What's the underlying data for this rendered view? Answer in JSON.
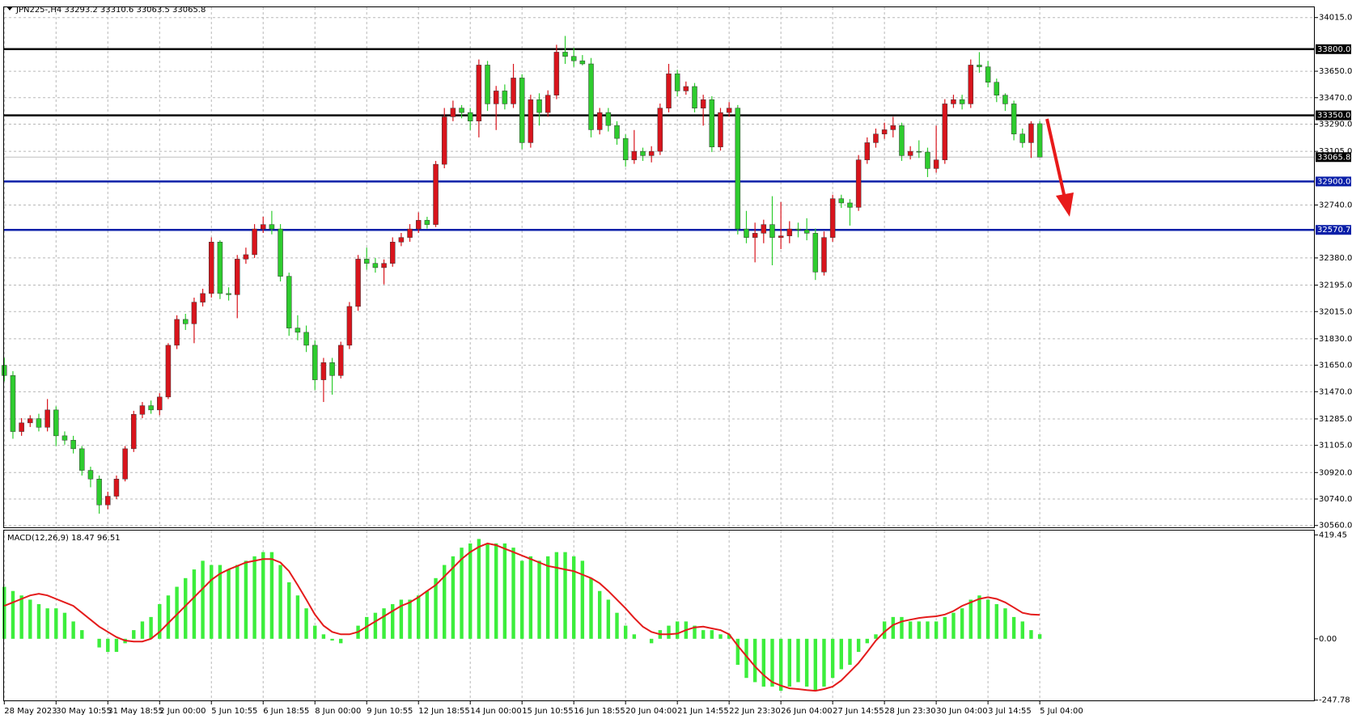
{
  "chart_data": [
    {
      "type": "candlestick",
      "title": "JPN225-,H4  33293.2 33310.6 33063.5 33065.8",
      "up_color": "#d8141c",
      "down_color": "#2ecc2e",
      "grid": true,
      "ylim": [
        30542,
        34085
      ],
      "yticks": [
        {
          "value": 34015,
          "label": "34015.0"
        },
        {
          "value": 33650,
          "label": "33650.0"
        },
        {
          "value": 33470,
          "label": "33470.0"
        },
        {
          "value": 33290,
          "label": "33290.0"
        },
        {
          "value": 33105,
          "label": "33105.0"
        },
        {
          "value": 32740,
          "label": "32740.0"
        },
        {
          "value": 32380,
          "label": "32380.0"
        },
        {
          "value": 32195,
          "label": "32195.0"
        },
        {
          "value": 32015,
          "label": "32015.0"
        },
        {
          "value": 31830,
          "label": "31830.0"
        },
        {
          "value": 31650,
          "label": "31650.0"
        },
        {
          "value": 31470,
          "label": "31470.0"
        },
        {
          "value": 31285,
          "label": "31285.0"
        },
        {
          "value": 31105,
          "label": "31105.0"
        },
        {
          "value": 30920,
          "label": "30920.0"
        },
        {
          "value": 30740,
          "label": "30740.0"
        },
        {
          "value": 30560,
          "label": "30560.0"
        }
      ],
      "xticks": [
        {
          "value": 0,
          "label": "28 May 2023"
        },
        {
          "value": 6,
          "label": "30 May 10:55"
        },
        {
          "value": 12,
          "label": "31 May 18:55"
        },
        {
          "value": 18,
          "label": "2 Jun 00:00"
        },
        {
          "value": 24,
          "label": "5 Jun 10:55"
        },
        {
          "value": 30,
          "label": "6 Jun 18:55"
        },
        {
          "value": 36,
          "label": "8 Jun 00:00"
        },
        {
          "value": 42,
          "label": "9 Jun 10:55"
        },
        {
          "value": 48,
          "label": "12 Jun 18:55"
        },
        {
          "value": 54,
          "label": "14 Jun 00:00"
        },
        {
          "value": 60,
          "label": "15 Jun 10:55"
        },
        {
          "value": 66,
          "label": "16 Jun 18:55"
        },
        {
          "value": 72,
          "label": "20 Jun 04:00"
        },
        {
          "value": 78,
          "label": "21 Jun 14:55"
        },
        {
          "value": 84,
          "label": "22 Jun 23:30"
        },
        {
          "value": 90,
          "label": "26 Jun 04:00"
        },
        {
          "value": 96,
          "label": "27 Jun 14:55"
        },
        {
          "value": 102,
          "label": "28 Jun 23:30"
        },
        {
          "value": 108,
          "label": "30 Jun 04:00"
        },
        {
          "value": 114,
          "label": "3 Jul 14:55"
        },
        {
          "value": 120,
          "label": "5 Jul 04:00"
        }
      ],
      "levels": [
        {
          "value": 33800,
          "label": "33800.0",
          "color": "#000000"
        },
        {
          "value": 33350,
          "label": "33350.0",
          "color": "#000000"
        },
        {
          "value": 32900,
          "label": "32900.0",
          "color": "#0a1fa8"
        },
        {
          "value": 32570.7,
          "label": "32570.7",
          "color": "#0a1fa8"
        }
      ],
      "current_price": {
        "value": 33065.8,
        "label": "33065.8",
        "color": "#000000"
      },
      "open": [
        31650,
        31580,
        31199,
        31258,
        31287,
        31228,
        31346,
        31170,
        31140,
        31082,
        30935,
        30876,
        30700,
        30759,
        30876,
        31082,
        31316,
        31375,
        31346,
        31434,
        31786,
        31962,
        31932,
        32079,
        32138,
        32488,
        32138,
        32130,
        32372,
        32402,
        32577,
        32607,
        32577,
        32255,
        31903,
        31874,
        31786,
        31551,
        31668,
        31580,
        31786,
        32050,
        32372,
        32343,
        32314,
        32343,
        32488,
        32519,
        32577,
        32636,
        32607,
        33017,
        33340,
        33399,
        33369,
        33311,
        33692,
        33428,
        33516,
        33428,
        33604,
        33164,
        33457,
        33369,
        33487,
        33780,
        33751,
        33721,
        33700,
        33252,
        33369,
        33281,
        33193,
        33047,
        33105,
        33076,
        33105,
        33399,
        33633,
        33516,
        33546,
        33399,
        33457,
        33135,
        33369,
        33399,
        32577,
        32519,
        32548,
        32607,
        32519,
        32530,
        32577,
        32570,
        32548,
        32284,
        32519,
        32783,
        32754,
        32724,
        33047,
        33164,
        33223,
        33252,
        33281,
        33076,
        33105,
        33100,
        32988,
        33047,
        33428,
        33457,
        33428,
        33692,
        33680,
        33575,
        33487,
        33428,
        33223,
        33164,
        33293.2
      ],
      "high": [
        31700,
        31610,
        31290,
        31310,
        31320,
        31420,
        31370,
        31200,
        31170,
        31100,
        30960,
        30900,
        30790,
        30900,
        31100,
        31340,
        31400,
        31410,
        31460,
        31800,
        31990,
        32000,
        32110,
        32170,
        32520,
        32500,
        32180,
        32400,
        32450,
        32610,
        32660,
        32700,
        32610,
        32280,
        31990,
        31920,
        31820,
        31700,
        31700,
        31810,
        32080,
        32400,
        32450,
        32380,
        32370,
        32520,
        32550,
        32610,
        32690,
        32660,
        33040,
        33400,
        33450,
        33420,
        33400,
        33730,
        33720,
        33550,
        33560,
        33700,
        33630,
        33490,
        33500,
        33520,
        33830,
        33890,
        33810,
        33760,
        33740,
        33400,
        33400,
        33310,
        33220,
        33250,
        33130,
        33140,
        33430,
        33700,
        33660,
        33580,
        33570,
        33490,
        33480,
        33400,
        33440,
        33420,
        32700,
        32620,
        32640,
        32800,
        32760,
        32630,
        32620,
        32650,
        32580,
        32560,
        32810,
        32810,
        32780,
        33080,
        33200,
        33260,
        33300,
        33340,
        33300,
        33140,
        33180,
        33130,
        33280,
        33460,
        33490,
        33490,
        33730,
        33780,
        33720,
        33600,
        33500,
        33450,
        33260,
        33310,
        33310.6
      ],
      "low": [
        31540,
        31150,
        31170,
        31230,
        31200,
        31200,
        31100,
        31110,
        31050,
        30900,
        30820,
        30640,
        30670,
        30740,
        30860,
        31060,
        31290,
        31320,
        31310,
        31420,
        31760,
        31890,
        31800,
        32050,
        32110,
        32100,
        32090,
        31970,
        32340,
        32380,
        32550,
        32540,
        32220,
        31850,
        31820,
        31740,
        31480,
        31400,
        31450,
        31560,
        31760,
        32020,
        32300,
        32280,
        32200,
        32320,
        32460,
        32490,
        32550,
        32580,
        32590,
        32990,
        33310,
        33330,
        33250,
        33200,
        33380,
        33250,
        33390,
        33400,
        33120,
        33130,
        33280,
        33340,
        33460,
        33700,
        33680,
        33690,
        33200,
        33220,
        33240,
        33150,
        33000,
        33020,
        33040,
        33030,
        33080,
        33370,
        33480,
        33490,
        33370,
        33280,
        33100,
        33110,
        33340,
        32540,
        32480,
        32350,
        32480,
        32330,
        32440,
        32480,
        32520,
        32500,
        32230,
        32260,
        32490,
        32720,
        32600,
        32700,
        33020,
        33130,
        33190,
        33200,
        33040,
        33050,
        33060,
        32930,
        32960,
        33020,
        33400,
        33390,
        33400,
        33640,
        33540,
        33440,
        33380,
        33180,
        33130,
        33060,
        33063.5
      ],
      "close": [
        31580,
        31199,
        31258,
        31287,
        31228,
        31346,
        31170,
        31140,
        31082,
        30935,
        30876,
        30700,
        30759,
        30876,
        31082,
        31316,
        31375,
        31346,
        31434,
        31786,
        31962,
        31932,
        32079,
        32138,
        32488,
        32138,
        32130,
        32372,
        32402,
        32577,
        32607,
        32577,
        32255,
        31903,
        31874,
        31786,
        31551,
        31668,
        31580,
        31786,
        32050,
        32372,
        32343,
        32314,
        32343,
        32488,
        32519,
        32577,
        32636,
        32607,
        33017,
        33340,
        33399,
        33369,
        33311,
        33692,
        33428,
        33516,
        33428,
        33604,
        33164,
        33457,
        33369,
        33487,
        33780,
        33751,
        33721,
        33700,
        33252,
        33369,
        33281,
        33193,
        33047,
        33105,
        33076,
        33105,
        33399,
        33633,
        33516,
        33546,
        33399,
        33457,
        33135,
        33369,
        33399,
        32577,
        32519,
        32548,
        32607,
        32519,
        32530,
        32577,
        32570,
        32548,
        32284,
        32519,
        32783,
        32754,
        32724,
        33047,
        33164,
        33223,
        33252,
        33281,
        33076,
        33105,
        33100,
        32988,
        33047,
        33428,
        33457,
        33428,
        33692,
        33680,
        33575,
        33487,
        33428,
        33223,
        33164,
        33293.2,
        33065.8
      ]
    },
    {
      "type": "macd",
      "title": "MACD(12,26,9) 18.47 96.51",
      "ylim": [
        -252,
        437
      ],
      "yticks": [
        419.45,
        {
          "value": 0,
          "label": "0.00"
        },
        -247.78
      ],
      "histogram": {
        "color": "#3cee3c",
        "values": [
          210,
          193,
          175,
          158,
          140,
          123,
          123,
          105,
          70,
          35,
          0,
          -35,
          -53,
          -53,
          -18,
          35,
          70,
          88,
          140,
          175,
          210,
          245,
          280,
          315,
          298,
          298,
          280,
          298,
          315,
          333,
          350,
          350,
          298,
          228,
          175,
          123,
          53,
          18,
          -7,
          -18,
          0,
          53,
          88,
          105,
          123,
          140,
          158,
          158,
          175,
          193,
          245,
          298,
          333,
          368,
          385,
          403,
          385,
          385,
          385,
          368,
          315,
          333,
          315,
          333,
          350,
          350,
          333,
          315,
          245,
          193,
          158,
          105,
          53,
          18,
          0,
          -18,
          35,
          53,
          70,
          70,
          53,
          35,
          35,
          18,
          18,
          -105,
          -158,
          -175,
          -193,
          -193,
          -210,
          -193,
          -175,
          -193,
          -210,
          -193,
          -158,
          -123,
          -105,
          -53,
          -18,
          18,
          70,
          88,
          88,
          70,
          70,
          70,
          70,
          88,
          105,
          123,
          158,
          175,
          158,
          140,
          123,
          88,
          70,
          35,
          18.47
        ]
      },
      "signal": {
        "color": "#e41b1b",
        "values": [
          133,
          147,
          161,
          175,
          182,
          175,
          161,
          147,
          133,
          105,
          77,
          49,
          28,
          7,
          -7,
          -11,
          -11,
          0,
          28,
          63,
          98,
          133,
          168,
          203,
          238,
          263,
          280,
          294,
          308,
          315,
          322,
          322,
          308,
          273,
          217,
          158,
          98,
          53,
          28,
          18,
          18,
          28,
          49,
          70,
          91,
          112,
          133,
          147,
          168,
          193,
          217,
          252,
          287,
          322,
          350,
          371,
          385,
          378,
          364,
          350,
          336,
          322,
          308,
          294,
          287,
          280,
          273,
          259,
          245,
          224,
          193,
          158,
          123,
          84,
          49,
          28,
          18,
          18,
          21,
          35,
          46,
          49,
          42,
          35,
          18,
          -28,
          -70,
          -112,
          -147,
          -175,
          -189,
          -200,
          -203,
          -207,
          -210,
          -203,
          -193,
          -168,
          -133,
          -98,
          -53,
          -7,
          28,
          56,
          70,
          77,
          84,
          88,
          91,
          98,
          112,
          133,
          147,
          161,
          168,
          161,
          147,
          126,
          105,
          98,
          96.51
        ]
      }
    }
  ]
}
